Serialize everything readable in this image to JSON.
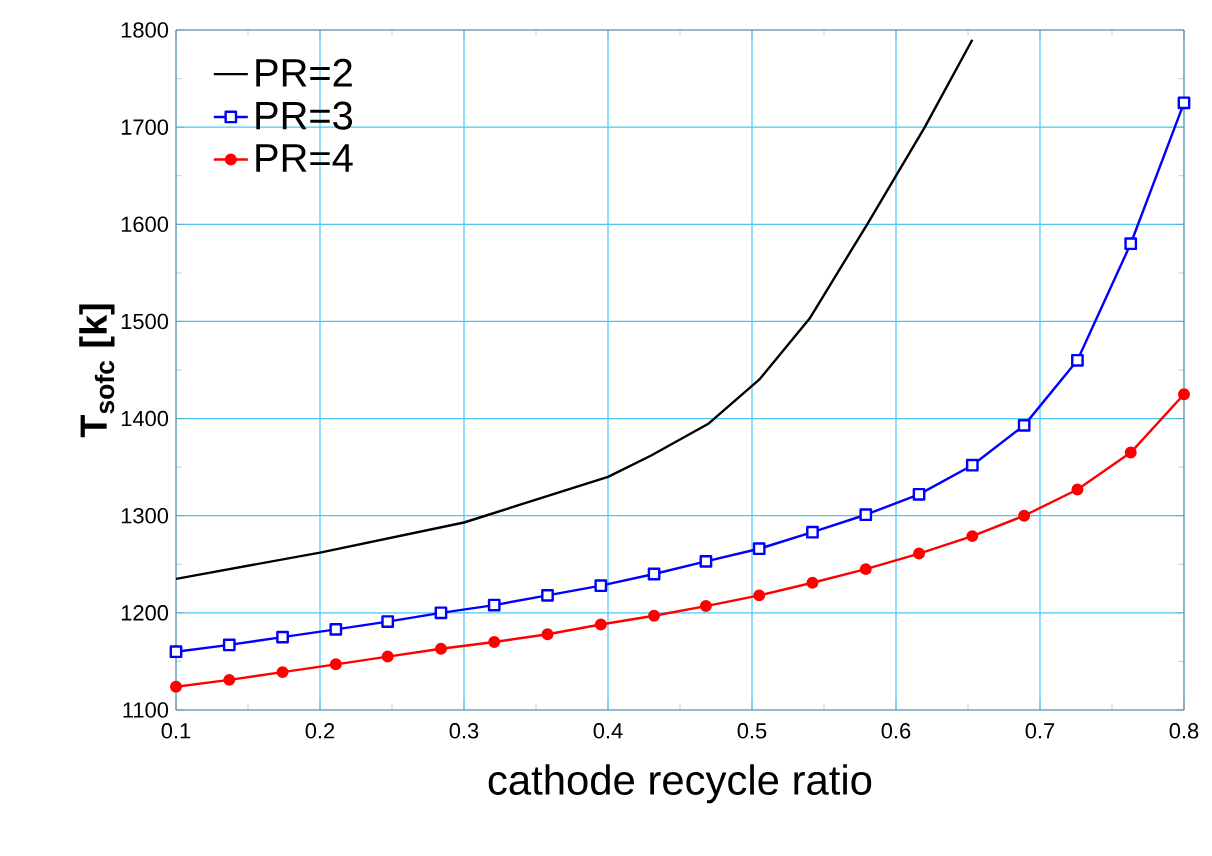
{
  "chart_data": {
    "type": "line",
    "xlabel": "cathode recycle ratio",
    "ylabel": "T$_{sofc}$ [k]",
    "xlim": [
      0.1,
      0.8
    ],
    "ylim": [
      1100,
      1800
    ],
    "xticks": [
      0.1,
      0.2,
      0.3,
      0.4,
      0.5,
      0.6,
      0.7,
      0.8
    ],
    "yticks": [
      1100,
      1200,
      1300,
      1400,
      1500,
      1600,
      1700,
      1800
    ],
    "grid": true,
    "legend": "top left",
    "series": [
      {
        "name": "PR=2",
        "color": "#000000",
        "marker": "none",
        "x": [
          0.1,
          0.2,
          0.3,
          0.4,
          0.43,
          0.47,
          0.505,
          0.54,
          0.58,
          0.62,
          0.653
        ],
        "values": [
          1235,
          1262,
          1293,
          1340,
          1362,
          1395,
          1440,
          1503,
          1600,
          1700,
          1790
        ]
      },
      {
        "name": "PR=3",
        "color": "#0000ff",
        "marker": "square",
        "x": [
          0.1,
          0.137,
          0.174,
          0.211,
          0.247,
          0.284,
          0.321,
          0.358,
          0.395,
          0.432,
          0.468,
          0.505,
          0.542,
          0.579,
          0.616,
          0.653,
          0.689,
          0.726,
          0.763,
          0.8
        ],
        "values": [
          1160,
          1167,
          1175,
          1183,
          1191,
          1200,
          1208,
          1218,
          1228,
          1240,
          1253,
          1266,
          1283,
          1301,
          1322,
          1352,
          1393,
          1460,
          1580,
          1725
        ]
      },
      {
        "name": "PR=4",
        "color": "#ff0000",
        "marker": "circle",
        "x": [
          0.1,
          0.137,
          0.174,
          0.211,
          0.247,
          0.284,
          0.321,
          0.358,
          0.395,
          0.432,
          0.468,
          0.505,
          0.542,
          0.579,
          0.616,
          0.653,
          0.689,
          0.726,
          0.763,
          0.8
        ],
        "values": [
          1124,
          1131,
          1139,
          1147,
          1155,
          1163,
          1170,
          1178,
          1188,
          1197,
          1207,
          1218,
          1231,
          1245,
          1261,
          1279,
          1300,
          1327,
          1365,
          1425
        ]
      }
    ]
  }
}
